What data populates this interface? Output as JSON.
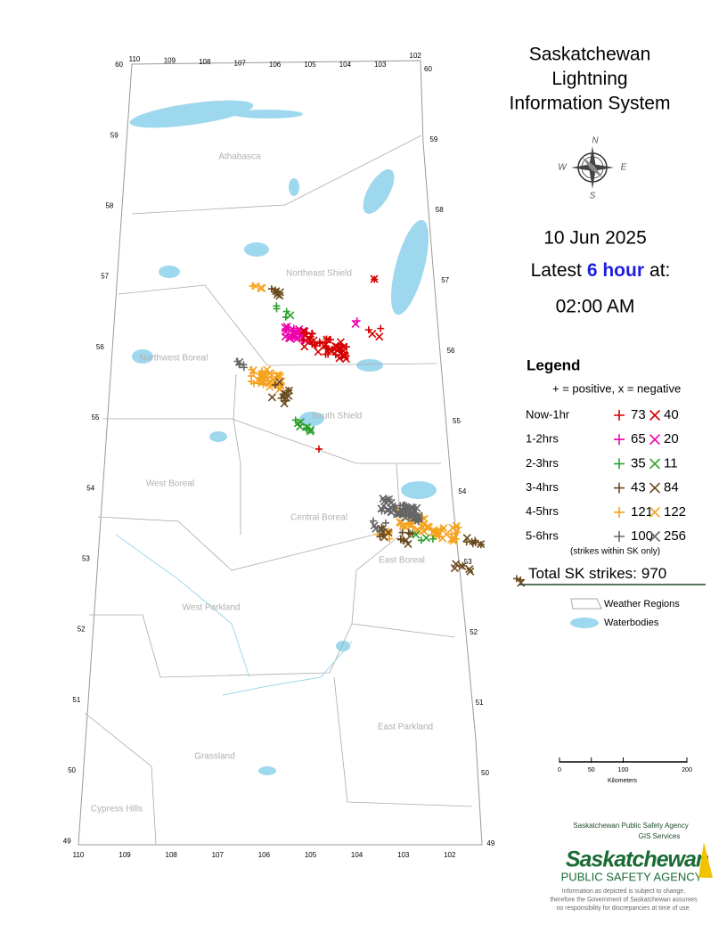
{
  "title": [
    "Saskatchewan",
    "Lightning",
    "Information System"
  ],
  "compass": [
    "N",
    "E",
    "S",
    "W"
  ],
  "date": "10 Jun 2025",
  "latest": {
    "prefix": "Latest",
    "period": "6 hour",
    "suffix": "at:"
  },
  "time": "02:00 AM",
  "legend": {
    "title": "Legend",
    "note": "+ = positive, x = negative",
    "rows": [
      {
        "label": "Now-1hr",
        "color": "#d40000",
        "positive": 73,
        "negative": 40
      },
      {
        "label": "1-2hrs",
        "color": "#ee00aa",
        "positive": 65,
        "negative": 20
      },
      {
        "label": "2-3hrs",
        "color": "#2ca02c",
        "positive": 35,
        "negative": 11
      },
      {
        "label": "3-4hrs",
        "color": "#6b4a1e",
        "positive": 43,
        "negative": 84
      },
      {
        "label": "4-5hrs",
        "color": "#f5a21e",
        "positive": 121,
        "negative": 122
      },
      {
        "label": "5-6hrs",
        "color": "#666666",
        "positive": 100,
        "negative": 256
      }
    ],
    "footnote": "(strikes within SK only)",
    "total_label": "Total SK strikes:",
    "total": 970,
    "layers": [
      "Weather Regions",
      "Waterbodies"
    ]
  },
  "regions": [
    "Athabasca",
    "Northeast Shield",
    "Northwest Boreal",
    "South Shield",
    "West Boreal",
    "Central Boreal",
    "East Boreal",
    "West Parkland",
    "East Parkland",
    "Grassland",
    "Cypress Hills"
  ],
  "latitudes": [
    60,
    59,
    58,
    57,
    56,
    55,
    54,
    53,
    52,
    51,
    50,
    49
  ],
  "longitudes": [
    110,
    109,
    108,
    107,
    106,
    105,
    104,
    103,
    102
  ],
  "scale": {
    "ticks": [
      0,
      50,
      100,
      200
    ],
    "unit": "Kilometers"
  },
  "agency": {
    "name": "Saskatchewan Public Safety Agency",
    "unit": "GIS Services",
    "logo_main": "Saskatchewan",
    "logo_sub": "PUBLIC SAFETY AGENCY",
    "disclaimer": [
      "Information as depicted is subject to change,",
      "therefore the Government of Saskatchewan assumes",
      "no responsibility for discrepancies at time of use."
    ]
  }
}
